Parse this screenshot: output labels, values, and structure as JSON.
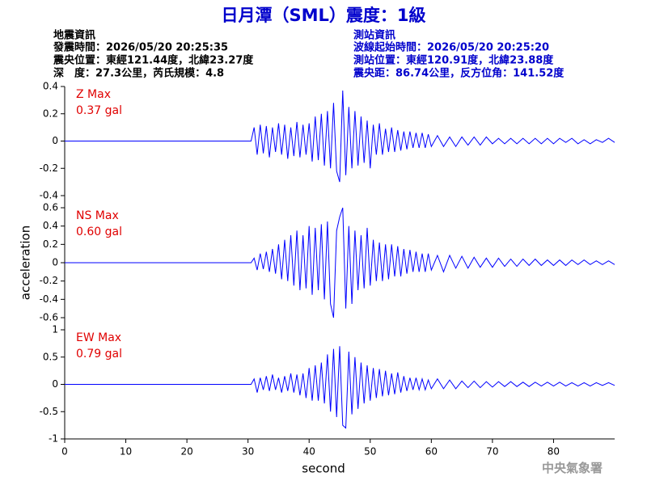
{
  "header": {
    "title": "日月潭（SML）震度：1級",
    "left": [
      "地震資訊",
      "發震時間：2026/05/20 20:25:35",
      "震央位置：東經121.44度，北緯23.27度",
      "深　度：27.3公里，芮氏規模：4.8"
    ],
    "right": [
      "測站資訊",
      "波線起始時間：2026/05/20 20:25:20",
      "測站位置：東經120.91度，北緯23.88度",
      "震央距：86.74公里，反方位角：141.52度"
    ],
    "footer": "中央氣象署"
  },
  "chart_data": [
    {
      "type": "line",
      "label": "Z Max",
      "max_label": "0.37 gal",
      "color": "#0000ff",
      "xlim": [
        0,
        90
      ],
      "ylim": [
        -0.4,
        0.4
      ],
      "yticks": [
        0.4,
        0.2,
        0,
        -0.2,
        -0.4
      ],
      "x": [
        0,
        30.5,
        31,
        31.5,
        32,
        32.5,
        33,
        33.5,
        34,
        34.5,
        35,
        35.5,
        36,
        36.5,
        37,
        37.5,
        38,
        38.5,
        39,
        39.5,
        40,
        40.5,
        41,
        41.5,
        42,
        42.5,
        43,
        43.5,
        44,
        44.5,
        45,
        45.5,
        46,
        46.5,
        47,
        47.5,
        48,
        48.5,
        49,
        49.5,
        50,
        50.5,
        51,
        51.5,
        52,
        52.5,
        53,
        53.5,
        54,
        54.5,
        55,
        55.5,
        56,
        56.5,
        57,
        57.5,
        58,
        58.5,
        59,
        59.5,
        60,
        61,
        62,
        63,
        64,
        65,
        66,
        67,
        68,
        69,
        70,
        71,
        72,
        73,
        74,
        75,
        76,
        77,
        78,
        79,
        80,
        81,
        82,
        83,
        84,
        85,
        86,
        87,
        88,
        89,
        90
      ],
      "values": [
        0,
        0,
        0.1,
        -0.1,
        0.12,
        -0.09,
        0.11,
        -0.12,
        0.1,
        -0.08,
        0.13,
        -0.1,
        0.12,
        -0.13,
        0.1,
        -0.11,
        0.14,
        -0.12,
        0.12,
        -0.1,
        0.13,
        -0.15,
        0.18,
        -0.14,
        0.2,
        -0.18,
        0.22,
        -0.2,
        0.28,
        -0.22,
        -0.3,
        0.37,
        -0.25,
        0.25,
        -0.2,
        0.22,
        -0.18,
        0.18,
        -0.16,
        0.15,
        -0.2,
        0.12,
        -0.1,
        0.13,
        -0.1,
        0.09,
        -0.08,
        0.1,
        -0.08,
        0.08,
        -0.07,
        0.07,
        -0.06,
        0.07,
        -0.05,
        0.06,
        -0.05,
        0.06,
        -0.05,
        0.05,
        -0.04,
        0.04,
        -0.04,
        0.03,
        -0.04,
        0.03,
        -0.03,
        0.03,
        -0.03,
        0.03,
        -0.02,
        0.02,
        -0.02,
        0.02,
        -0.02,
        0.02,
        -0.02,
        0.02,
        -0.02,
        0.02,
        -0.02,
        0.02,
        -0.01,
        0.02,
        -0.02,
        0.01,
        -0.02,
        0.01,
        -0.01,
        0.02,
        -0.01
      ]
    },
    {
      "type": "line",
      "label": "NS Max",
      "max_label": "0.60 gal",
      "color": "#0000ff",
      "ylabel": "acceleration",
      "xlim": [
        0,
        90
      ],
      "ylim": [
        -0.6,
        0.6
      ],
      "yticks": [
        0.6,
        0.4,
        0.2,
        0,
        -0.2,
        -0.4,
        -0.6
      ],
      "x": [
        0,
        30.5,
        31,
        31.5,
        32,
        32.5,
        33,
        33.5,
        34,
        34.5,
        35,
        35.5,
        36,
        36.5,
        37,
        37.5,
        38,
        38.5,
        39,
        39.5,
        40,
        40.5,
        41,
        41.5,
        42,
        42.5,
        43,
        43.5,
        44,
        44.5,
        45,
        45.5,
        46,
        46.5,
        47,
        47.5,
        48,
        48.5,
        49,
        49.5,
        50,
        50.5,
        51,
        51.5,
        52,
        52.5,
        53,
        53.5,
        54,
        54.5,
        55,
        55.5,
        56,
        56.5,
        57,
        57.5,
        58,
        58.5,
        59,
        59.5,
        60,
        61,
        62,
        63,
        64,
        65,
        66,
        67,
        68,
        69,
        70,
        71,
        72,
        73,
        74,
        75,
        76,
        77,
        78,
        79,
        80,
        81,
        82,
        83,
        84,
        85,
        86,
        87,
        88,
        89,
        90
      ],
      "values": [
        0,
        0,
        0.05,
        -0.08,
        0.1,
        -0.07,
        0.12,
        -0.1,
        0.15,
        -0.12,
        0.2,
        -0.18,
        0.25,
        -0.2,
        0.3,
        -0.25,
        0.35,
        -0.3,
        0.3,
        -0.28,
        0.4,
        -0.35,
        0.38,
        -0.3,
        0.42,
        -0.4,
        0.45,
        -0.45,
        -0.6,
        0.35,
        0.5,
        0.6,
        -0.5,
        0.4,
        -0.45,
        0.35,
        -0.3,
        0.3,
        -0.28,
        0.38,
        -0.25,
        0.25,
        -0.2,
        0.22,
        -0.2,
        0.2,
        -0.18,
        0.2,
        -0.15,
        0.18,
        -0.15,
        0.15,
        -0.12,
        0.14,
        -0.1,
        0.12,
        -0.1,
        0.1,
        -0.1,
        0.1,
        -0.08,
        0.08,
        -0.1,
        0.08,
        -0.06,
        0.07,
        -0.06,
        0.06,
        -0.05,
        0.05,
        -0.05,
        0.05,
        -0.04,
        0.04,
        -0.04,
        0.04,
        -0.03,
        0.04,
        -0.03,
        0.03,
        -0.03,
        0.03,
        -0.03,
        0.03,
        -0.02,
        0.03,
        -0.02,
        0.02,
        -0.02,
        0.02,
        -0.02
      ]
    },
    {
      "type": "line",
      "label": "EW Max",
      "max_label": "0.79 gal",
      "color": "#0000ff",
      "xlabel": "second",
      "xlim": [
        0,
        90
      ],
      "xticks": [
        0,
        10,
        20,
        30,
        40,
        50,
        60,
        70,
        80
      ],
      "ylim": [
        -1,
        1
      ],
      "yticks": [
        1,
        0.5,
        0,
        -0.5,
        -1
      ],
      "x": [
        0,
        30.5,
        31,
        31.5,
        32,
        32.5,
        33,
        33.5,
        34,
        34.5,
        35,
        35.5,
        36,
        36.5,
        37,
        37.5,
        38,
        38.5,
        39,
        39.5,
        40,
        40.5,
        41,
        41.5,
        42,
        42.5,
        43,
        43.5,
        44,
        44.5,
        45,
        45.5,
        46,
        46.5,
        47,
        47.5,
        48,
        48.5,
        49,
        49.5,
        50,
        50.5,
        51,
        51.5,
        52,
        52.5,
        53,
        53.5,
        54,
        54.5,
        55,
        55.5,
        56,
        56.5,
        57,
        57.5,
        58,
        58.5,
        59,
        59.5,
        60,
        61,
        62,
        63,
        64,
        65,
        66,
        67,
        68,
        69,
        70,
        71,
        72,
        73,
        74,
        75,
        76,
        77,
        78,
        79,
        80,
        81,
        82,
        83,
        84,
        85,
        86,
        87,
        88,
        89,
        90
      ],
      "values": [
        0,
        0,
        0.1,
        -0.15,
        0.12,
        -0.1,
        0.15,
        -0.12,
        0.18,
        -0.1,
        0.12,
        -0.15,
        0.15,
        -0.12,
        0.2,
        -0.15,
        0.18,
        -0.2,
        0.2,
        -0.25,
        0.3,
        -0.3,
        0.35,
        -0.3,
        0.4,
        -0.35,
        0.55,
        -0.5,
        0.65,
        -0.6,
        0.7,
        -0.75,
        -0.8,
        0.6,
        -0.55,
        0.5,
        -0.45,
        0.4,
        -0.35,
        0.35,
        -0.3,
        0.3,
        -0.25,
        0.28,
        -0.22,
        0.25,
        -0.2,
        0.2,
        -0.18,
        0.22,
        -0.15,
        0.15,
        -0.12,
        0.12,
        -0.1,
        0.12,
        -0.1,
        0.1,
        -0.1,
        0.08,
        -0.08,
        0.1,
        -0.08,
        0.08,
        -0.08,
        0.06,
        -0.06,
        0.06,
        -0.06,
        0.05,
        -0.05,
        0.05,
        -0.04,
        0.05,
        -0.04,
        0.04,
        -0.04,
        0.04,
        -0.03,
        0.04,
        -0.03,
        0.04,
        -0.03,
        0.03,
        -0.03,
        0.03,
        -0.03,
        0.03,
        -0.02,
        0.03,
        -0.02
      ]
    }
  ]
}
